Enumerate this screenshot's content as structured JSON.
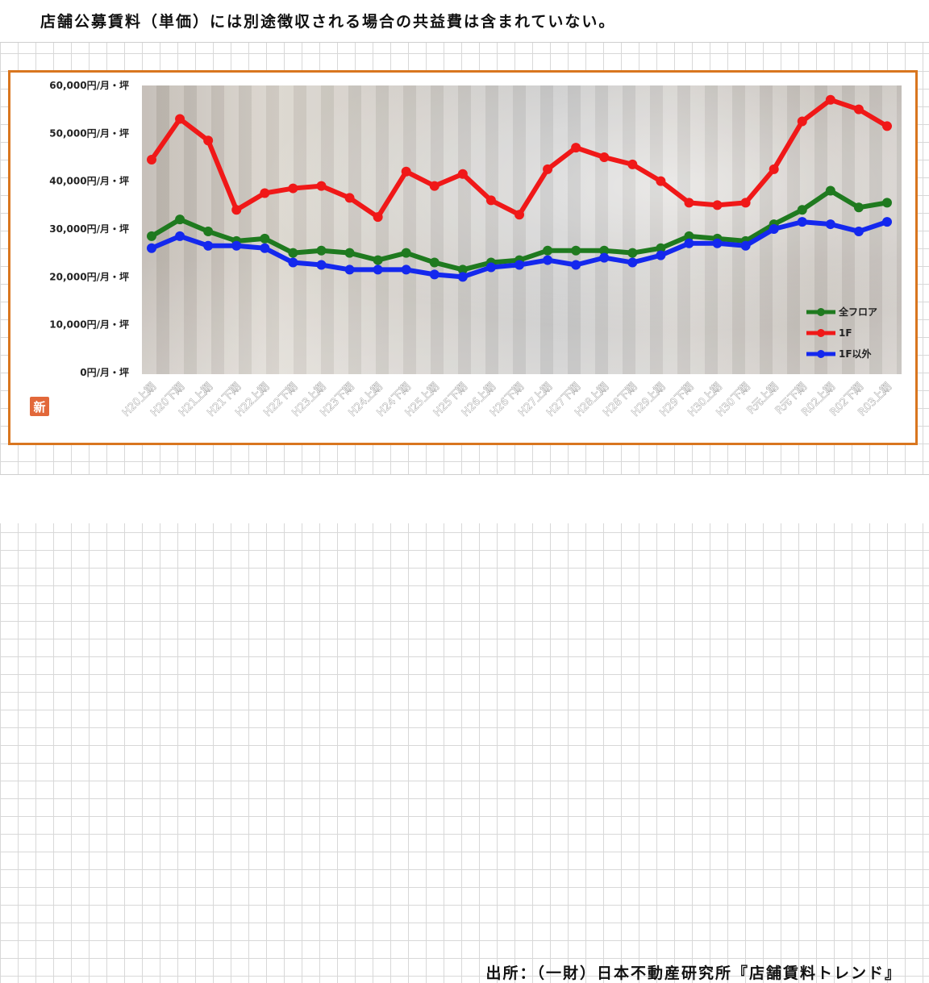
{
  "note": "店舗公募賃料（単価）には別途徴収される場合の共益費は含まれていない。",
  "source": "出所：（一財）日本不動産研究所『店舗賃料トレンド』",
  "badge": "新",
  "colors": {
    "frame": "#d9761f",
    "all_floor": "#1f7a1f",
    "f1": "#f01818",
    "other_than_1f": "#1428ee"
  },
  "chart_data": {
    "type": "line",
    "ylim": [
      0,
      60000
    ],
    "yticks": [
      {
        "value": 0,
        "label": "0円/月・坪"
      },
      {
        "value": 10000,
        "label": "10,000円/月・坪"
      },
      {
        "value": 20000,
        "label": "20,000円/月・坪"
      },
      {
        "value": 30000,
        "label": "30,000円/月・坪"
      },
      {
        "value": 40000,
        "label": "40,000円/月・坪"
      },
      {
        "value": 50000,
        "label": "50,000円/月・坪"
      },
      {
        "value": 60000,
        "label": "60,000円/月・坪"
      }
    ],
    "categories": [
      "H20上期",
      "H20下期",
      "H21上期",
      "H21下期",
      "H22上期",
      "H22下期",
      "H23上期",
      "H23下期",
      "H24上期",
      "H24下期",
      "H25上期",
      "H25下期",
      "H26上期",
      "H26下期",
      "H27上期",
      "H27下期",
      "H28上期",
      "H28下期",
      "H29上期",
      "H29下期",
      "H30上期",
      "H30下期",
      "R元上期",
      "R元下期",
      "R02上期",
      "R02下期",
      "R03上期"
    ],
    "legend": "right",
    "series": [
      {
        "name": "全フロア",
        "color": "#1f7a1f",
        "values": [
          28500,
          32000,
          29500,
          27500,
          28000,
          25000,
          25500,
          25000,
          23500,
          25000,
          23000,
          21500,
          23000,
          23500,
          25500,
          25500,
          25500,
          25000,
          26000,
          28500,
          28000,
          27500,
          31000,
          34000,
          38000,
          34500,
          35500
        ]
      },
      {
        "name": "1F",
        "color": "#f01818",
        "values": [
          44500,
          53000,
          48500,
          34000,
          37500,
          38500,
          39000,
          36500,
          32500,
          42000,
          39000,
          41500,
          36000,
          33000,
          42500,
          47000,
          45000,
          43500,
          40000,
          35500,
          35000,
          35500,
          42500,
          52500,
          57000,
          55000,
          51500
        ]
      },
      {
        "name": "1F以外",
        "color": "#1428ee",
        "values": [
          26000,
          28500,
          26500,
          26500,
          26000,
          23000,
          22500,
          21500,
          21500,
          21500,
          20500,
          20000,
          22000,
          22500,
          23500,
          22500,
          24000,
          23000,
          24500,
          27000,
          27000,
          26500,
          30000,
          31500,
          31000,
          29500,
          31500
        ]
      }
    ]
  }
}
